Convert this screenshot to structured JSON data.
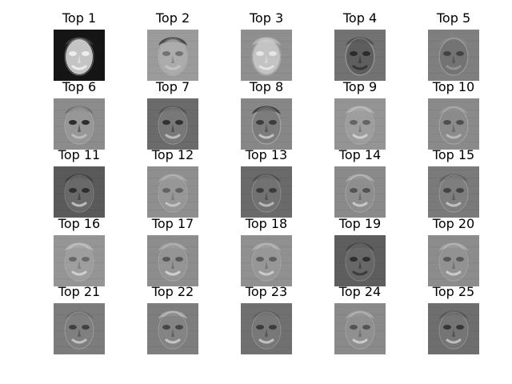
{
  "figure": {
    "panels": [
      {
        "title": "Top 1",
        "bg": "#151515",
        "face": "#d7d7d7",
        "eye": "#f2f2f2",
        "mouth": "#efefef",
        "hair": "#3a3a3a",
        "contrast": 1.0
      },
      {
        "title": "Top 2",
        "bg": "#9b9b9b",
        "face": "#b2b2b2",
        "eye": "#5d5d5d",
        "mouth": "#cbcbcb",
        "hair": "#2a2a2a",
        "contrast": 0.6
      },
      {
        "title": "Top 3",
        "bg": "#8f8f8f",
        "face": "#d0d0d0",
        "eye": "#f0f0f0",
        "mouth": "#ececec",
        "hair": "#bcbcbc",
        "contrast": 0.7
      },
      {
        "title": "Top 4",
        "bg": "#727272",
        "face": "#5a5a5a",
        "eye": "#202020",
        "mouth": "#2e2e2e",
        "hair": "#4a4a4a",
        "contrast": 0.8
      },
      {
        "title": "Top 5",
        "bg": "#7f7f7f",
        "face": "#6e6e6e",
        "eye": "#2f2f2f",
        "mouth": "#9f9f9f",
        "hair": "#8a8a8a",
        "contrast": 0.5
      },
      {
        "title": "Top 6",
        "bg": "#8c8c8c",
        "face": "#9a9a9a",
        "eye": "#111111",
        "mouth": "#c6c6c6",
        "hair": "#6a6a6a",
        "contrast": 0.7
      },
      {
        "title": "Top 7",
        "bg": "#6b6b6b",
        "face": "#7b7b7b",
        "eye": "#1d1d1d",
        "mouth": "#d0d0d0",
        "hair": "#505050",
        "contrast": 0.7
      },
      {
        "title": "Top 8",
        "bg": "#878787",
        "face": "#7a7a7a",
        "eye": "#2b2b2b",
        "mouth": "#d6d6d6",
        "hair": "#2f2f2f",
        "contrast": 0.7
      },
      {
        "title": "Top 9",
        "bg": "#949494",
        "face": "#a1a1a1",
        "eye": "#4a4a4a",
        "mouth": "#e2e2e2",
        "hair": "#bcbcbc",
        "contrast": 0.5
      },
      {
        "title": "Top 10",
        "bg": "#8a8a8a",
        "face": "#8b8b8b",
        "eye": "#3a3a3a",
        "mouth": "#c8c8c8",
        "hair": "#a0a0a0",
        "contrast": 0.6
      },
      {
        "title": "Top 11",
        "bg": "#5a5a5a",
        "face": "#6f6f6f",
        "eye": "#1a1a1a",
        "mouth": "#d8d8d8",
        "hair": "#3b3b3b",
        "contrast": 0.6
      },
      {
        "title": "Top 12",
        "bg": "#8f8f8f",
        "face": "#9a9a9a",
        "eye": "#4a4a4a",
        "mouth": "#d8d8d8",
        "hair": "#b0b0b0",
        "contrast": 0.45
      },
      {
        "title": "Top 13",
        "bg": "#6a6a6a",
        "face": "#757575",
        "eye": "#2a2a2a",
        "mouth": "#d0d0d0",
        "hair": "#4a4a4a",
        "contrast": 0.6
      },
      {
        "title": "Top 14",
        "bg": "#8a8a8a",
        "face": "#909090",
        "eye": "#3a3a3a",
        "mouth": "#e0e0e0",
        "hair": "#b5b5b5",
        "contrast": 0.5
      },
      {
        "title": "Top 15",
        "bg": "#7a7a7a",
        "face": "#808080",
        "eye": "#2c2c2c",
        "mouth": "#dadada",
        "hair": "#5a5a5a",
        "contrast": 0.55
      },
      {
        "title": "Top 16",
        "bg": "#959595",
        "face": "#a2a2a2",
        "eye": "#4f4f4f",
        "mouth": "#e6e6e6",
        "hair": "#c4c4c4",
        "contrast": 0.45
      },
      {
        "title": "Top 17",
        "bg": "#8d8d8d",
        "face": "#979797",
        "eye": "#3f3f3f",
        "mouth": "#e8e8e8",
        "hair": "#b0b0b0",
        "contrast": 0.5
      },
      {
        "title": "Top 18",
        "bg": "#909090",
        "face": "#9a9a9a",
        "eye": "#464646",
        "mouth": "#e2e2e2",
        "hair": "#b8b8b8",
        "contrast": 0.45
      },
      {
        "title": "Top 19",
        "bg": "#5e5e5e",
        "face": "#6a6a6a",
        "eye": "#1b1b1b",
        "mouth": "#2c2c2c",
        "hair": "#3e3e3e",
        "contrast": 0.55
      },
      {
        "title": "Top 20",
        "bg": "#8c8c8c",
        "face": "#959595",
        "eye": "#3d3d3d",
        "mouth": "#e6e6e6",
        "hair": "#b6b6b6",
        "contrast": 0.45
      },
      {
        "title": "Top 21",
        "bg": "#7c7c7c",
        "face": "#7f7f7f",
        "eye": "#2b2b2b",
        "mouth": "#d6d6d6",
        "hair": "#6a6a6a",
        "contrast": 0.6
      },
      {
        "title": "Top 22",
        "bg": "#7e7e7e",
        "face": "#878787",
        "eye": "#2f2f2f",
        "mouth": "#dedede",
        "hair": "#bdbdbd",
        "contrast": 0.55
      },
      {
        "title": "Top 23",
        "bg": "#707070",
        "face": "#7b7b7b",
        "eye": "#252525",
        "mouth": "#dcdcdc",
        "hair": "#5c5c5c",
        "contrast": 0.55
      },
      {
        "title": "Top 24",
        "bg": "#8a8a8a",
        "face": "#929292",
        "eye": "#3a3a3a",
        "mouth": "#e2e2e2",
        "hair": "#b0b0b0",
        "contrast": 0.5
      },
      {
        "title": "Top 25",
        "bg": "#6e6e6e",
        "face": "#777777",
        "eye": "#202020",
        "mouth": "#d7d7d7",
        "hair": "#4f4f4f",
        "contrast": 0.6
      }
    ]
  }
}
